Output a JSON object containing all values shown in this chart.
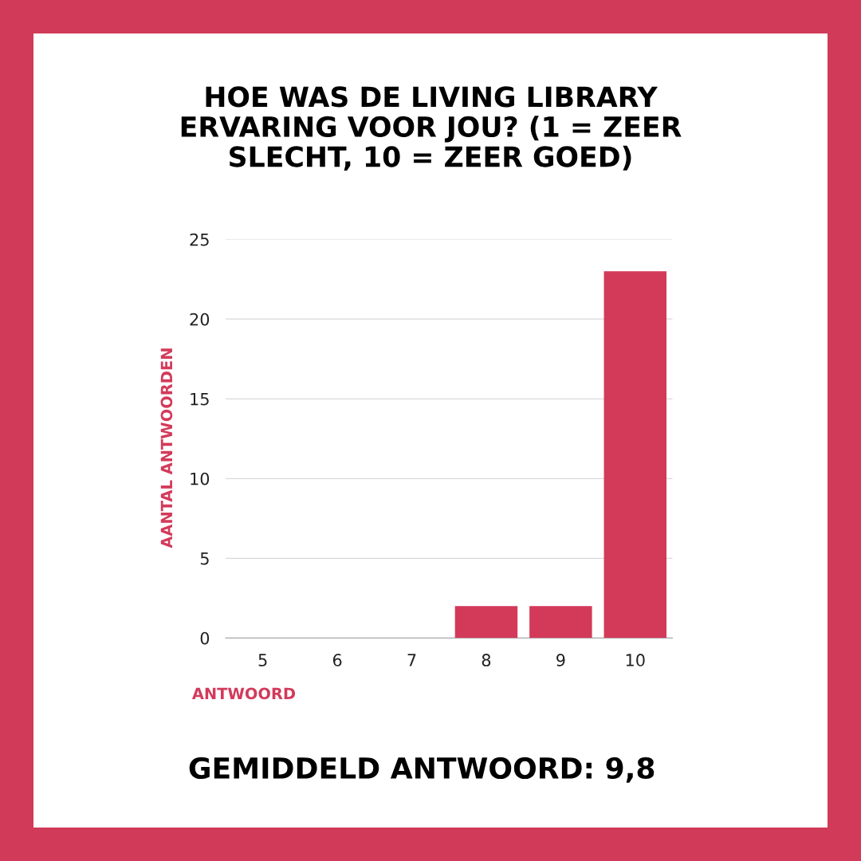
{
  "chart_data": {
    "type": "bar",
    "title": "HOE WAS DE LIVING LIBRARY\nERVARING VOOR JOU? (1 = ZEER\nSLECHT, 10 = ZEER GOED)",
    "xlabel": "ANTWOORD",
    "ylabel": "AANTAL ANTWOORDEN",
    "categories": [
      "5",
      "6",
      "7",
      "8",
      "9",
      "10"
    ],
    "values": [
      0,
      0,
      0,
      2,
      2,
      23
    ],
    "color": "#d33a5a",
    "ylim": [
      0,
      25
    ],
    "yticks": [
      0,
      5,
      10,
      15,
      20,
      25
    ],
    "grid": "y",
    "annotations": [
      "GEMIDDELD ANTWOORD: 9,8"
    ]
  }
}
